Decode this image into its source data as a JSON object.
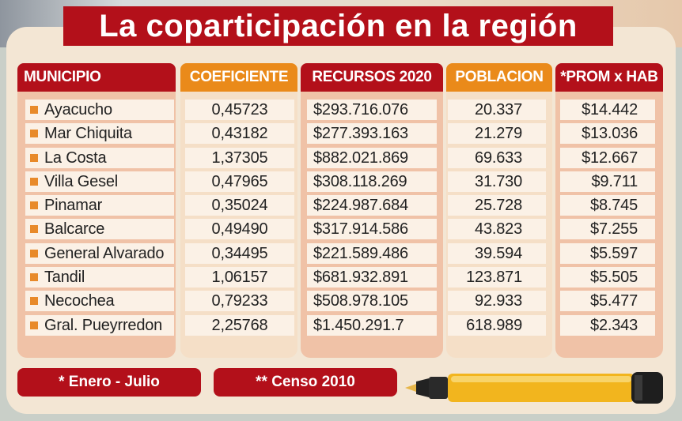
{
  "title": "La coparticipación en la región",
  "headers": {
    "municipio": "MUNICIPIO",
    "coeficiente": "COEFICIENTE",
    "recursos": "RECURSOS 2020",
    "poblacion": "POBLACION",
    "prom": "*PROM x HAB"
  },
  "rows": [
    {
      "municipio": "Ayacucho",
      "coeficiente": "0,45723",
      "recursos": "$293.716.076",
      "poblacion": "20.337",
      "prom": "$14.442"
    },
    {
      "municipio": "Mar Chiquita",
      "coeficiente": "0,43182",
      "recursos": "$277.393.163",
      "poblacion": "21.279",
      "prom": "$13.036"
    },
    {
      "municipio": "La Costa",
      "coeficiente": "1,37305",
      "recursos": "$882.021.869",
      "poblacion": "69.633",
      "prom": "$12.667"
    },
    {
      "municipio": "Villa Gesel",
      "coeficiente": "0,47965",
      "recursos": "$308.118.269",
      "poblacion": "31.730",
      "prom": "$9.711"
    },
    {
      "municipio": "Pinamar",
      "coeficiente": "0,35024",
      "recursos": "$224.987.684",
      "poblacion": "25.728",
      "prom": "$8.745"
    },
    {
      "municipio": "Balcarce",
      "coeficiente": "0,49490",
      "recursos": "$317.914.586",
      "poblacion": "43.823",
      "prom": "$7.255"
    },
    {
      "municipio": "General Alvarado",
      "coeficiente": "0,34495",
      "recursos": "$221.589.486",
      "poblacion": "39.594",
      "prom": "$5.597"
    },
    {
      "municipio": "Tandil",
      "coeficiente": "1,06157",
      "recursos": "$681.932.891",
      "poblacion": "123.871",
      "prom": "$5.505"
    },
    {
      "municipio": "Necochea",
      "coeficiente": "0,79233",
      "recursos": "$508.978.105",
      "poblacion": "92.933",
      "prom": "$5.477"
    },
    {
      "municipio": "Gral. Pueyrredon",
      "coeficiente": "2,25768",
      "recursos": "$1.450.291.7",
      "poblacion": "618.989",
      "prom": "$2.343"
    }
  ],
  "notes": {
    "enero_julio": "* Enero - Julio",
    "censo": "** Censo 2010"
  },
  "colors": {
    "red": "#b3101a",
    "orange": "#ea8a1a",
    "bullet": "#e88a2a"
  },
  "icons": {
    "marker": "highlighter-marker-icon",
    "bullet": "square-bullet-icon"
  }
}
